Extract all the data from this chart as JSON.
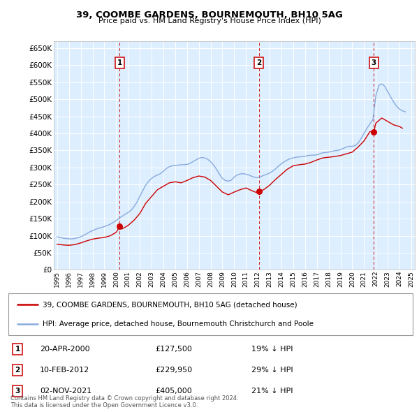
{
  "title": "39, COOMBE GARDENS, BOURNEMOUTH, BH10 5AG",
  "subtitle": "Price paid vs. HM Land Registry's House Price Index (HPI)",
  "ytick_values": [
    0,
    50000,
    100000,
    150000,
    200000,
    250000,
    300000,
    350000,
    400000,
    450000,
    500000,
    550000,
    600000,
    650000
  ],
  "xlim_start": 1994.7,
  "xlim_end": 2025.3,
  "ylim_min": 0,
  "ylim_max": 670000,
  "bg_color": "#ddeeff",
  "grid_color": "#ffffff",
  "red_line_color": "#cc0000",
  "blue_line_color": "#88aadd",
  "marker_color": "#cc0000",
  "transaction_dates": [
    2000.3,
    2012.1,
    2021.83
  ],
  "transaction_prices": [
    127500,
    229950,
    405000
  ],
  "transaction_labels": [
    "1",
    "2",
    "3"
  ],
  "legend_entries": [
    "39, COOMBE GARDENS, BOURNEMOUTH, BH10 5AG (detached house)",
    "HPI: Average price, detached house, Bournemouth Christchurch and Poole"
  ],
  "table_rows": [
    {
      "num": "1",
      "date": "20-APR-2000",
      "price": "£127,500",
      "pct": "19% ↓ HPI"
    },
    {
      "num": "2",
      "date": "10-FEB-2012",
      "price": "£229,950",
      "pct": "29% ↓ HPI"
    },
    {
      "num": "3",
      "date": "02-NOV-2021",
      "price": "£405,000",
      "pct": "21% ↓ HPI"
    }
  ],
  "footer": "Contains HM Land Registry data © Crown copyright and database right 2024.\nThis data is licensed under the Open Government Licence v3.0.",
  "hpi_years": [
    1995,
    1995.25,
    1995.5,
    1995.75,
    1996,
    1996.25,
    1996.5,
    1996.75,
    1997,
    1997.25,
    1997.5,
    1997.75,
    1998,
    1998.25,
    1998.5,
    1998.75,
    1999,
    1999.25,
    1999.5,
    1999.75,
    2000,
    2000.25,
    2000.5,
    2000.75,
    2001,
    2001.25,
    2001.5,
    2001.75,
    2002,
    2002.25,
    2002.5,
    2002.75,
    2003,
    2003.25,
    2003.5,
    2003.75,
    2004,
    2004.25,
    2004.5,
    2004.75,
    2005,
    2005.25,
    2005.5,
    2005.75,
    2006,
    2006.25,
    2006.5,
    2006.75,
    2007,
    2007.25,
    2007.5,
    2007.75,
    2008,
    2008.25,
    2008.5,
    2008.75,
    2009,
    2009.25,
    2009.5,
    2009.75,
    2010,
    2010.25,
    2010.5,
    2010.75,
    2011,
    2011.25,
    2011.5,
    2011.75,
    2012,
    2012.25,
    2012.5,
    2012.75,
    2013,
    2013.25,
    2013.5,
    2013.75,
    2014,
    2014.25,
    2014.5,
    2014.75,
    2015,
    2015.25,
    2015.5,
    2015.75,
    2016,
    2016.25,
    2016.5,
    2016.75,
    2017,
    2017.25,
    2017.5,
    2017.75,
    2018,
    2018.25,
    2018.5,
    2018.75,
    2019,
    2019.25,
    2019.5,
    2019.75,
    2020,
    2020.25,
    2020.5,
    2020.75,
    2021,
    2021.25,
    2021.5,
    2021.75,
    2022,
    2022.25,
    2022.5,
    2022.75,
    2023,
    2023.25,
    2023.5,
    2023.75,
    2024,
    2024.25,
    2024.5
  ],
  "hpi_values": [
    97000,
    95000,
    93000,
    92000,
    91000,
    90500,
    92000,
    94000,
    97000,
    101000,
    106000,
    111000,
    115000,
    119000,
    122000,
    124000,
    127000,
    130000,
    134000,
    139000,
    145000,
    151000,
    157000,
    163000,
    168000,
    174000,
    185000,
    198000,
    215000,
    232000,
    248000,
    260000,
    268000,
    274000,
    278000,
    282000,
    289000,
    297000,
    302000,
    305000,
    306000,
    307000,
    308000,
    308000,
    309000,
    312000,
    317000,
    322000,
    327000,
    329000,
    328000,
    324000,
    317000,
    307000,
    295000,
    280000,
    268000,
    262000,
    260000,
    263000,
    272000,
    278000,
    281000,
    282000,
    280000,
    278000,
    274000,
    271000,
    270000,
    273000,
    277000,
    280000,
    284000,
    289000,
    296000,
    304000,
    311000,
    317000,
    322000,
    326000,
    328000,
    330000,
    331000,
    332000,
    333000,
    335000,
    336000,
    336000,
    337000,
    340000,
    343000,
    344000,
    345000,
    347000,
    349000,
    350000,
    352000,
    356000,
    360000,
    362000,
    362000,
    364000,
    372000,
    385000,
    400000,
    415000,
    428000,
    440000,
    510000,
    540000,
    545000,
    538000,
    522000,
    507000,
    492000,
    480000,
    471000,
    466000,
    463000
  ],
  "red_years": [
    1995,
    1995.5,
    1996,
    1996.5,
    1997,
    1997.5,
    1998,
    1998.5,
    1999,
    1999.5,
    2000,
    2000.3,
    2000.5,
    2001,
    2001.5,
    2002,
    2002.5,
    2003,
    2003.5,
    2004,
    2004.5,
    2005,
    2005.5,
    2006,
    2006.5,
    2007,
    2007.5,
    2008,
    2008.5,
    2009,
    2009.5,
    2010,
    2010.5,
    2011,
    2011.5,
    2012,
    2012.1,
    2012.5,
    2013,
    2013.5,
    2014,
    2014.5,
    2015,
    2015.5,
    2016,
    2016.5,
    2017,
    2017.5,
    2018,
    2018.5,
    2019,
    2019.5,
    2020,
    2020.5,
    2021,
    2021.5,
    2021.83,
    2022,
    2022.5,
    2023,
    2023.5,
    2024,
    2024.25
  ],
  "red_values": [
    75000,
    73000,
    72000,
    74000,
    79000,
    85000,
    90000,
    93000,
    95000,
    100000,
    110000,
    127500,
    120000,
    130000,
    145000,
    165000,
    195000,
    215000,
    235000,
    245000,
    255000,
    258000,
    255000,
    262000,
    270000,
    275000,
    272000,
    262000,
    245000,
    228000,
    220000,
    228000,
    235000,
    240000,
    232000,
    225000,
    229950,
    235000,
    248000,
    265000,
    280000,
    295000,
    305000,
    308000,
    310000,
    315000,
    322000,
    328000,
    330000,
    332000,
    335000,
    340000,
    345000,
    360000,
    378000,
    405000,
    405000,
    430000,
    445000,
    435000,
    425000,
    420000,
    415000
  ]
}
